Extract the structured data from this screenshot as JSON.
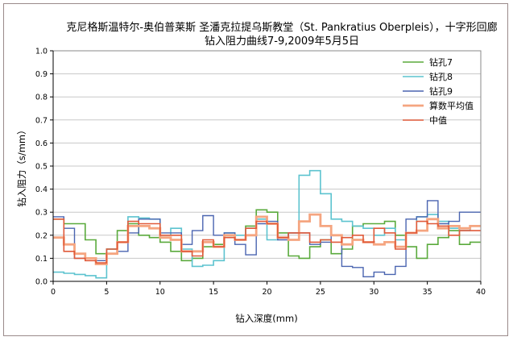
{
  "chart_data": {
    "type": "line",
    "title": [
      "克尼格斯温特尔-奥伯普莱斯 圣潘克拉提乌斯教堂（St. Pankratius Oberpleis），十字形回廊",
      "钻入阻力曲线7-9,2009年5月5日"
    ],
    "xlabel": "钻入深度(mm)",
    "ylabel": "钻入阻力（s/mm）",
    "xlim": [
      0,
      40
    ],
    "ylim": [
      0,
      1.0
    ],
    "xticks": [
      0,
      5,
      10,
      15,
      20,
      25,
      30,
      35,
      40
    ],
    "yticks": [
      0.0,
      0.1,
      0.2,
      0.3,
      0.4,
      0.5,
      0.6,
      0.7,
      0.8,
      0.9,
      1.0
    ],
    "grid": "horizontal",
    "legend_position": "top-right",
    "step": 1,
    "series": [
      {
        "name": "钻孔7",
        "color": "#5aaa3c",
        "width": 1.6,
        "values": [
          0.27,
          0.25,
          0.25,
          0.18,
          0.12,
          0.14,
          0.22,
          0.25,
          0.2,
          0.19,
          0.17,
          0.13,
          0.09,
          0.1,
          0.15,
          0.16,
          0.19,
          0.18,
          0.24,
          0.31,
          0.3,
          0.21,
          0.11,
          0.1,
          0.15,
          0.18,
          0.12,
          0.14,
          0.24,
          0.25,
          0.25,
          0.26,
          0.2,
          0.15,
          0.1,
          0.16,
          0.19,
          0.22,
          0.16,
          0.17
        ]
      },
      {
        "name": "钻孔8",
        "color": "#5cc3cf",
        "width": 1.6,
        "values": [
          0.04,
          0.035,
          0.03,
          0.025,
          0.015,
          0.14,
          0.17,
          0.28,
          0.275,
          0.27,
          0.2,
          0.23,
          0.14,
          0.065,
          0.07,
          0.09,
          0.21,
          0.2,
          0.23,
          0.27,
          0.18,
          0.19,
          0.21,
          0.46,
          0.48,
          0.38,
          0.27,
          0.26,
          0.24,
          0.23,
          0.2,
          0.23,
          0.18,
          0.21,
          0.28,
          0.29,
          0.26,
          0.23,
          0.22,
          0.24
        ]
      },
      {
        "name": "钻孔9",
        "color": "#4a64b0",
        "width": 1.4,
        "values": [
          0.28,
          0.23,
          0.1,
          0.09,
          0.09,
          0.12,
          0.13,
          0.21,
          0.27,
          0.27,
          0.21,
          0.21,
          0.16,
          0.22,
          0.285,
          0.2,
          0.21,
          0.16,
          0.115,
          0.25,
          0.26,
          0.18,
          0.21,
          0.21,
          0.16,
          0.17,
          0.2,
          0.065,
          0.06,
          0.02,
          0.04,
          0.03,
          0.065,
          0.27,
          0.28,
          0.35,
          0.25,
          0.26,
          0.3,
          0.3
        ]
      },
      {
        "name": "算数平均值",
        "color": "#f5a580",
        "width": 2.8,
        "values": [
          0.19,
          0.16,
          0.12,
          0.1,
          0.075,
          0.12,
          0.17,
          0.24,
          0.24,
          0.23,
          0.19,
          0.18,
          0.13,
          0.13,
          0.17,
          0.15,
          0.2,
          0.18,
          0.2,
          0.28,
          0.25,
          0.19,
          0.18,
          0.26,
          0.29,
          0.24,
          0.2,
          0.16,
          0.18,
          0.17,
          0.16,
          0.17,
          0.15,
          0.21,
          0.22,
          0.27,
          0.23,
          0.24,
          0.23,
          0.24
        ]
      },
      {
        "name": "中值",
        "color": "#e05a3a",
        "width": 1.6,
        "values": [
          0.27,
          0.13,
          0.1,
          0.09,
          0.08,
          0.14,
          0.17,
          0.26,
          0.25,
          0.25,
          0.2,
          0.2,
          0.13,
          0.11,
          0.18,
          0.15,
          0.19,
          0.18,
          0.23,
          0.26,
          0.25,
          0.19,
          0.21,
          0.21,
          0.17,
          0.18,
          0.17,
          0.19,
          0.2,
          0.17,
          0.23,
          0.21,
          0.14,
          0.21,
          0.26,
          0.25,
          0.24,
          0.2,
          0.22,
          0.22
        ]
      }
    ]
  }
}
